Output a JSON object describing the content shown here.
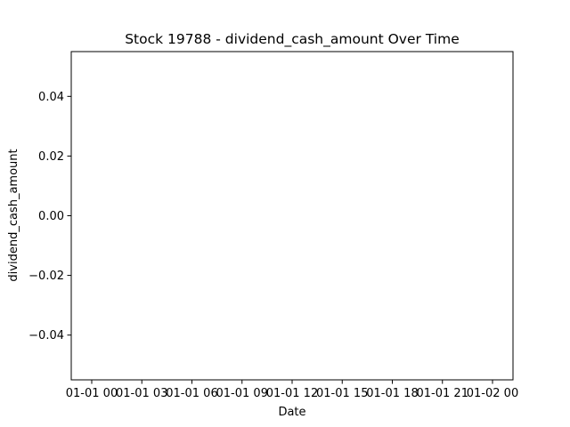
{
  "chart_data": {
    "type": "line",
    "title": "Stock 19788 - dividend_cash_amount Over Time",
    "xlabel": "Date",
    "ylabel": "dividend_cash_amount",
    "x_ticks": [
      "01-01 00",
      "01-01 03",
      "01-01 06",
      "01-01 09",
      "01-01 12",
      "01-01 15",
      "01-01 18",
      "01-01 21",
      "01-02 00"
    ],
    "y_ticks": [
      {
        "value": 0.04,
        "label": "0.04"
      },
      {
        "value": 0.02,
        "label": "0.02"
      },
      {
        "value": 0.0,
        "label": "0.00"
      },
      {
        "value": -0.02,
        "label": "−0.02"
      },
      {
        "value": -0.04,
        "label": "−0.04"
      }
    ],
    "ylim": [
      -0.055,
      0.055
    ],
    "series": [],
    "grid": false,
    "legend": "none"
  }
}
